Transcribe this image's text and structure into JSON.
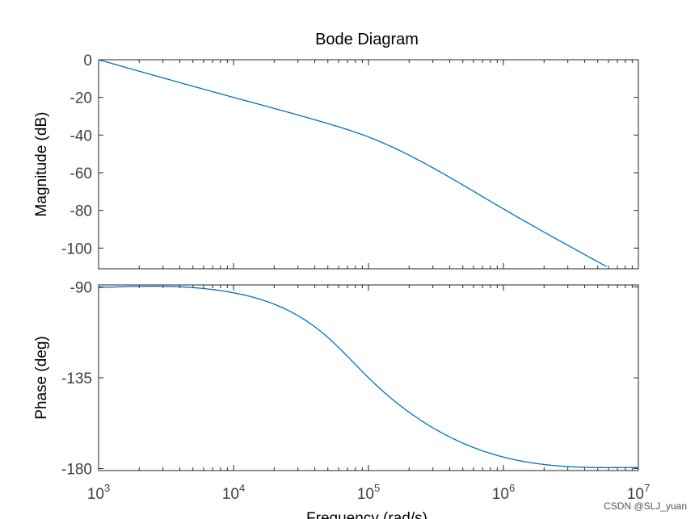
{
  "chart_data": {
    "type": "line",
    "title": "Bode Diagram",
    "xlabel": "Frequency  (rad/s)",
    "xscale": "log",
    "xlim": [
      1000,
      10000000
    ],
    "x_ticks": [
      {
        "base": "10",
        "exp": "3",
        "value": 1000
      },
      {
        "base": "10",
        "exp": "4",
        "value": 10000
      },
      {
        "base": "10",
        "exp": "5",
        "value": 100000
      },
      {
        "base": "10",
        "exp": "6",
        "value": 1000000
      },
      {
        "base": "10",
        "exp": "7",
        "value": 10000000
      }
    ],
    "grid": false,
    "line_color": "#0072BD",
    "panels": [
      {
        "id": "magnitude",
        "ylabel": "Magnitude (dB)",
        "ylim": [
          -111,
          0
        ],
        "y_ticks": [
          0,
          -20,
          -40,
          -60,
          -80,
          -100
        ],
        "series": [
          {
            "x": [
              1000,
              10000,
              50000,
              100000,
              1000000,
              5800000
            ],
            "y": [
              0,
              -20,
              -33.9,
              -41,
              -79.2,
              -109.8
            ]
          }
        ]
      },
      {
        "id": "phase",
        "ylabel": "Phase (deg)",
        "ylim": [
          -181,
          -89
        ],
        "y_ticks": [
          -90,
          -135,
          -180
        ],
        "series": [
          {
            "x": [
              1000,
              10000,
              50000,
              100000,
              1000000,
              10000000
            ],
            "y": [
              -90.3,
              -92.9,
              -115,
              -135,
              -174.3,
              -179.4
            ]
          }
        ]
      }
    ]
  },
  "watermark": "CSDN @SLJ_yuan"
}
